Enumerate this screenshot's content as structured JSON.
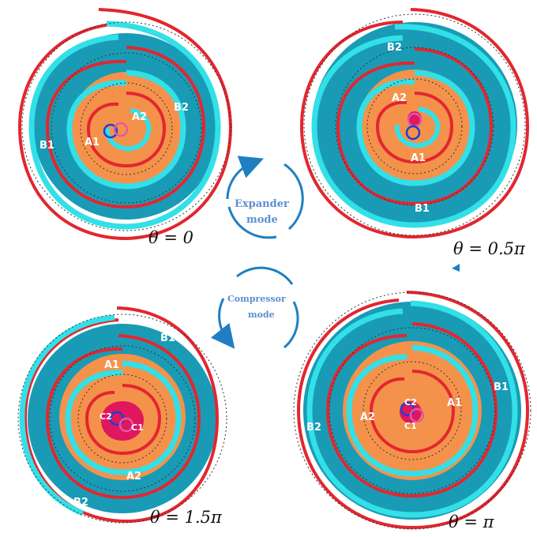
{
  "panels": [
    {
      "id": "theta-0",
      "angle_label": "θ = 0",
      "labels": {
        "A_left": "A1",
        "A_right": "A2",
        "B_left": "B1",
        "B_right": "B2"
      }
    },
    {
      "id": "theta-half-pi",
      "angle_label": "θ = 0.5π",
      "labels": {
        "A_top": "A2",
        "A_bottom": "A1",
        "B_top": "B2",
        "B_bottom": "B1"
      }
    },
    {
      "id": "theta-1-5-pi",
      "angle_label": "θ = 1.5π",
      "labels": {
        "A_top": "A1",
        "A_bottom": "A2",
        "B_top": "B1",
        "B_bottom": "B2",
        "C_left": "C2",
        "C_right": "C1"
      }
    },
    {
      "id": "theta-pi",
      "angle_label": "θ = π",
      "labels": {
        "A_left": "A2",
        "A_right": "A1",
        "B_left": "B2",
        "B_right": "B1",
        "C_top": "C2",
        "C_bottom": "C1"
      }
    }
  ],
  "modes": {
    "expander": {
      "line1": "Expander",
      "line2": "mode"
    },
    "compressor": {
      "line1": "Compressor",
      "line2": "mode"
    }
  },
  "colors": {
    "chamber_b": "#1a9bb5",
    "chamber_a": "#f4924b",
    "red_wrap": "#e3262f",
    "cyan_wrap": "#32e0e8",
    "center_pink": "#e0165f",
    "arrow": "#1f7fc2"
  }
}
